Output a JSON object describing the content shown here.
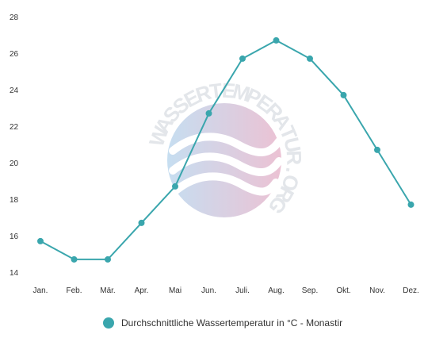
{
  "chart_data": {
    "type": "line",
    "categories": [
      "Jan.",
      "Feb.",
      "Mär.",
      "Apr.",
      "Mai",
      "Jun.",
      "Juli.",
      "Aug.",
      "Sep.",
      "Okt.",
      "Nov.",
      "Dez."
    ],
    "series": [
      {
        "name": "Durchschnittliche Wassertemperatur in °C - Monastir",
        "values": [
          15.7,
          14.7,
          14.7,
          16.7,
          18.7,
          22.7,
          25.7,
          26.7,
          25.7,
          23.7,
          20.7,
          17.7
        ],
        "color": "#3aa6ad"
      }
    ],
    "y_ticks": [
      14,
      16,
      18,
      20,
      22,
      24,
      26,
      28
    ],
    "ylim": [
      14,
      28
    ],
    "grid": false,
    "legend_position": "bottom"
  },
  "watermark": {
    "text": "WASSERTEMPERATUR.ORG",
    "colors": [
      "#bcd8ee",
      "#e8b7cc"
    ]
  },
  "legend": {
    "marker_color": "#3aa6ad",
    "label": "Durchschnittliche Wassertemperatur in °C - Monastir"
  }
}
